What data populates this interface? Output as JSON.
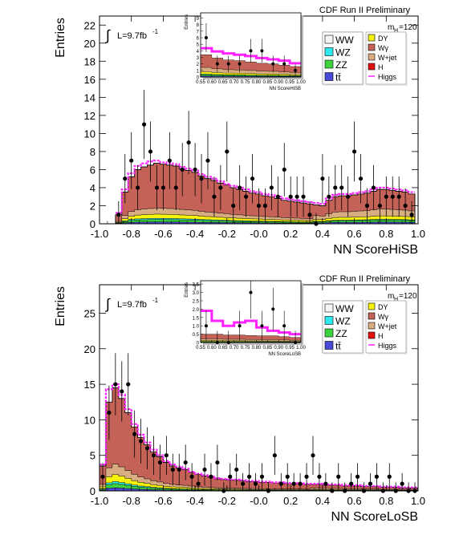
{
  "colors": {
    "WW": "#f4f4f4",
    "WZ": "#2ee8ee",
    "ZZ": "#3ed23e",
    "ttbar": "#4a4ad8",
    "DY": "#f6f20c",
    "Wgamma": "#c46258",
    "Wjet": "#d9ad82",
    "H": "#e21010",
    "Higgs": "#ff22ff",
    "data": "#000000"
  },
  "chart_data": [
    {
      "type": "histogram",
      "id": "hisb",
      "title": "CDF Run II Preliminary",
      "xlabel": "NN ScoreHiSB",
      "ylabel": "Entries",
      "lumi_label": "L=9.7fb",
      "lumi_sup": "-1",
      "mass_label": "m",
      "mass_sub": "H",
      "mass_value": "=120",
      "xlim": [
        -1.0,
        1.0
      ],
      "ylim": [
        0,
        23
      ],
      "x_ticks": [
        "-1.0",
        "-0.8",
        "-0.6",
        "-0.4",
        "-0.2",
        "-0.0",
        "0.2",
        "0.4",
        "0.6",
        "0.8",
        "1.0"
      ],
      "y_ticks": [
        "0",
        "2",
        "4",
        "6",
        "8",
        "10",
        "12",
        "14",
        "16",
        "18",
        "20",
        "22"
      ],
      "legend_left": [
        {
          "key": "WW",
          "label": "WW"
        },
        {
          "key": "WZ",
          "label": "WZ"
        },
        {
          "key": "ZZ",
          "label": "ZZ"
        },
        {
          "key": "ttbar",
          "label": "tt̄"
        }
      ],
      "legend_right": [
        {
          "key": "DY",
          "label": "DY"
        },
        {
          "key": "Wgamma",
          "label": "Wγ"
        },
        {
          "key": "Wjet",
          "label": "W+jet"
        },
        {
          "key": "H",
          "label": "H"
        },
        {
          "key": "Higgs",
          "label": "Higgs"
        }
      ],
      "bin_lo": -0.9,
      "bin_width": 0.04,
      "stack_order": [
        "ttbar",
        "ZZ",
        "WZ",
        "DY",
        "Wjet",
        "Wgamma"
      ],
      "stack_totals": [
        1.0,
        3.5,
        5.2,
        6.0,
        6.3,
        6.5,
        6.7,
        6.6,
        6.5,
        6.4,
        6.1,
        5.9,
        5.7,
        5.3,
        5.0,
        4.8,
        4.5,
        4.3,
        4.0,
        3.8,
        3.6,
        3.4,
        3.3,
        3.1,
        3.0,
        2.8,
        2.6,
        2.5,
        2.4,
        2.3,
        2.2,
        2.1,
        2.0,
        2.6,
        3.0,
        3.1,
        3.1,
        3.2,
        3.3,
        3.4,
        3.6,
        3.8,
        3.8,
        3.7,
        3.6,
        3.5,
        3.3
      ],
      "higgs_band": [
        1.2,
        3.8,
        5.6,
        6.4,
        6.7,
        6.9,
        7.0,
        6.8,
        6.7,
        6.6,
        6.3,
        6.1,
        5.9,
        5.5,
        5.2,
        5.0,
        4.7,
        4.4,
        4.2,
        4.0,
        3.8,
        3.6,
        3.5,
        3.3,
        3.2,
        3.0,
        2.8,
        2.7,
        2.6,
        2.5,
        2.4,
        2.3,
        2.2,
        2.8,
        3.2,
        3.3,
        3.3,
        3.4,
        3.5,
        3.6,
        3.8,
        4.0,
        4.0,
        3.9,
        3.8,
        3.7,
        3.5
      ],
      "data_points": {
        "x": [
          -0.88,
          -0.84,
          -0.8,
          -0.76,
          -0.72,
          -0.68,
          -0.64,
          -0.6,
          -0.56,
          -0.52,
          -0.48,
          -0.44,
          -0.4,
          -0.36,
          -0.32,
          -0.28,
          -0.24,
          -0.2,
          -0.16,
          -0.12,
          -0.08,
          -0.04,
          0.0,
          0.04,
          0.08,
          0.12,
          0.16,
          0.2,
          0.24,
          0.28,
          0.32,
          0.36,
          0.4,
          0.44,
          0.48,
          0.52,
          0.56,
          0.6,
          0.64,
          0.68,
          0.72,
          0.76,
          0.8,
          0.84,
          0.88,
          0.92,
          0.96
        ],
        "y": [
          1,
          5,
          7,
          4,
          11,
          8,
          4,
          4,
          7,
          4,
          6,
          9,
          6,
          5,
          7,
          3,
          4,
          8,
          2,
          4,
          3,
          5,
          2,
          2,
          4,
          3,
          6,
          3,
          3,
          3,
          1,
          0,
          5,
          3,
          4,
          4,
          3,
          8,
          5,
          2,
          4,
          2,
          3,
          3,
          3,
          2,
          1
        ]
      }
    },
    {
      "type": "histogram",
      "id": "losb",
      "title": "CDF Run II Preliminary",
      "xlabel": "NN ScoreLoSB",
      "ylabel": "Entries",
      "lumi_label": "L=9.7fb",
      "lumi_sup": "-1",
      "mass_label": "m",
      "mass_sub": "H",
      "mass_value": "=120",
      "xlim": [
        -1.0,
        1.0
      ],
      "ylim": [
        0,
        29
      ],
      "x_ticks": [
        "-1.0",
        "-0.8",
        "-0.6",
        "-0.4",
        "-0.2",
        "-0.0",
        "0.2",
        "0.4",
        "0.6",
        "0.8",
        "1.0"
      ],
      "y_ticks": [
        "0",
        "5",
        "10",
        "15",
        "20",
        "25"
      ],
      "legend_left": [
        {
          "key": "WW",
          "label": "WW"
        },
        {
          "key": "WZ",
          "label": "WZ"
        },
        {
          "key": "ZZ",
          "label": "ZZ"
        },
        {
          "key": "ttbar",
          "label": "tt̄"
        }
      ],
      "legend_right": [
        {
          "key": "DY",
          "label": "DY"
        },
        {
          "key": "Wgamma",
          "label": "Wγ"
        },
        {
          "key": "Wjet",
          "label": "W+jet"
        },
        {
          "key": "H",
          "label": "H"
        },
        {
          "key": "Higgs",
          "label": "Higgs"
        }
      ],
      "bin_lo": -1.0,
      "bin_width": 0.04,
      "stack_order": [
        "ttbar",
        "ZZ",
        "WZ",
        "DY",
        "Wjet",
        "Wgamma"
      ],
      "stack_totals": [
        3.5,
        12.5,
        14.5,
        13.0,
        11.0,
        9.0,
        7.5,
        6.5,
        5.5,
        4.8,
        4.0,
        3.5,
        3.2,
        3.0,
        2.6,
        2.3,
        2.1,
        1.9,
        1.7,
        1.6,
        1.5,
        1.5,
        1.4,
        1.3,
        1.3,
        1.2,
        1.2,
        1.1,
        1.1,
        1.0,
        1.0,
        1.0,
        0.9,
        0.9,
        0.9,
        0.8,
        0.8,
        0.8,
        0.7,
        0.7,
        0.7,
        0.6,
        0.6,
        0.6,
        0.5,
        0.5,
        0.5,
        0.4,
        0.4,
        0.4
      ],
      "higgs_band": [
        3.7,
        14.3,
        15.0,
        13.5,
        11.5,
        9.4,
        7.9,
        6.8,
        5.8,
        5.0,
        4.2,
        3.7,
        3.4,
        3.1,
        2.7,
        2.4,
        2.2,
        2.0,
        1.8,
        1.7,
        1.6,
        1.6,
        1.5,
        1.4,
        1.4,
        1.3,
        1.3,
        1.2,
        1.2,
        1.1,
        1.1,
        1.1,
        1.0,
        1.0,
        1.0,
        0.9,
        0.9,
        0.9,
        0.8,
        0.8,
        0.8,
        0.7,
        0.7,
        0.7,
        0.6,
        0.6,
        0.6,
        0.5,
        0.5,
        0.5
      ],
      "data_points": {
        "x": [
          -0.98,
          -0.94,
          -0.9,
          -0.86,
          -0.82,
          -0.78,
          -0.74,
          -0.7,
          -0.66,
          -0.62,
          -0.58,
          -0.54,
          -0.5,
          -0.46,
          -0.42,
          -0.38,
          -0.34,
          -0.3,
          -0.26,
          -0.22,
          -0.18,
          -0.14,
          -0.1,
          -0.06,
          -0.02,
          0.02,
          0.06,
          0.1,
          0.14,
          0.18,
          0.22,
          0.26,
          0.3,
          0.34,
          0.38,
          0.42,
          0.46,
          0.5,
          0.54,
          0.58,
          0.62,
          0.66,
          0.7,
          0.74,
          0.78,
          0.82,
          0.86,
          0.9,
          0.94,
          0.98
        ],
        "y": [
          2,
          11,
          15,
          14,
          15,
          8,
          7,
          6,
          5,
          4,
          5,
          3,
          3,
          4,
          2,
          1,
          3,
          2,
          4,
          0,
          2,
          3,
          1,
          2,
          1,
          2,
          0,
          5,
          1,
          2,
          1,
          1,
          2,
          5,
          2,
          1,
          0,
          2,
          0,
          1,
          2,
          0,
          1,
          2,
          0,
          2,
          0,
          1,
          0,
          0
        ]
      }
    }
  ],
  "insets": [
    {
      "id": "hisb-inset",
      "xlabel": "NN ScoreHiSB",
      "ylabel": "Entries",
      "xlim": [
        0.55,
        1.0
      ],
      "ylim": [
        0,
        9.8
      ],
      "x_ticks": [
        "0.55",
        "0.60",
        "0.65",
        "0.70",
        "0.75",
        "0.80",
        "0.85",
        "0.90",
        "0.95",
        "1.00"
      ],
      "y_ticks": [
        "0",
        "1",
        "2",
        "3",
        "4",
        "5",
        "6",
        "7",
        "8",
        "9"
      ],
      "bin_lo": 0.55,
      "bin_width": 0.05,
      "stack_totals": [
        3.4,
        2.9,
        2.6,
        2.5,
        2.3,
        2.1,
        2.0,
        1.8,
        1.6
      ],
      "higgs_band": [
        4.4,
        3.9,
        3.6,
        3.4,
        3.2,
        2.9,
        2.7,
        2.5,
        2.1
      ],
      "data_points": {
        "x": [
          0.575,
          0.625,
          0.675,
          0.725,
          0.775,
          0.825,
          0.875,
          0.925,
          0.975
        ],
        "y": [
          6,
          2,
          2,
          2,
          4,
          4,
          2,
          2,
          1
        ]
      }
    },
    {
      "id": "losb-inset",
      "xlabel": "NN ScoreLoSB",
      "ylabel": "Entries",
      "xlim": [
        0.55,
        1.0
      ],
      "ylim": [
        0,
        3.7
      ],
      "x_ticks": [
        "0.55",
        "0.60",
        "0.65",
        "0.70",
        "0.75",
        "0.80",
        "0.85",
        "0.90",
        "0.95",
        "1.00"
      ],
      "y_ticks": [
        "0",
        "0.5",
        "1.0",
        "1.5",
        "2.0",
        "2.5",
        "3.0",
        "3.5"
      ],
      "bin_lo": 0.55,
      "bin_width": 0.05,
      "stack_totals": [
        0.5,
        0.5,
        0.45,
        0.45,
        0.42,
        0.4,
        0.4,
        0.35,
        0.3
      ],
      "higgs_band": [
        1.9,
        1.3,
        1.0,
        1.2,
        1.3,
        0.9,
        0.7,
        0.6,
        0.5
      ],
      "data_points": {
        "x": [
          0.575,
          0.625,
          0.675,
          0.725,
          0.775,
          0.825,
          0.875,
          0.925,
          0.975
        ],
        "y": [
          1,
          0,
          0,
          1,
          3,
          1,
          2,
          1,
          0
        ]
      }
    }
  ]
}
